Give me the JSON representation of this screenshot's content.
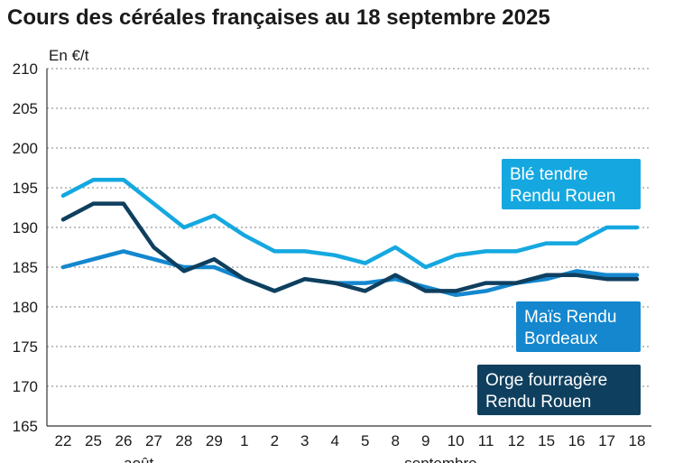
{
  "chart_data": {
    "type": "line",
    "title": "Cours des céréales françaises au 18 septembre 2025",
    "ylabel": "En €/t",
    "ylim": [
      165,
      210
    ],
    "yticks": [
      165,
      170,
      175,
      180,
      185,
      190,
      195,
      200,
      205,
      210
    ],
    "x": [
      "22",
      "25",
      "26",
      "27",
      "28",
      "29",
      "1",
      "2",
      "3",
      "4",
      "5",
      "8",
      "9",
      "10",
      "11",
      "12",
      "15",
      "16",
      "17",
      "18"
    ],
    "month_labels": [
      {
        "label": "août",
        "start": 0,
        "end": 5
      },
      {
        "label": "septembre",
        "start": 6,
        "end": 19
      }
    ],
    "grid": true,
    "series": [
      {
        "name_lines": [
          "Blé tendre",
          "Rendu Rouen"
        ],
        "color": "#15a8e0",
        "values": [
          194,
          196,
          196,
          193,
          190,
          191.5,
          189,
          187,
          187,
          186.5,
          185.5,
          187.5,
          185,
          186.5,
          187,
          187,
          188,
          188,
          190,
          190
        ]
      },
      {
        "name_lines": [
          "Maïs Rendu",
          "Bordeaux"
        ],
        "color": "#1487cf",
        "values": [
          185,
          186,
          187,
          186,
          185,
          185,
          183.5,
          182,
          183.5,
          183,
          183,
          183.5,
          182.5,
          181.5,
          182,
          183,
          183.5,
          184.5,
          184,
          184
        ]
      },
      {
        "name_lines": [
          "Orge fourragère",
          "Rendu Rouen"
        ],
        "color": "#0f3f5e",
        "values": [
          191,
          193,
          193,
          187.5,
          184.5,
          186,
          183.5,
          182,
          183.5,
          183,
          182,
          184,
          182,
          182,
          183,
          183,
          184,
          184,
          183.5,
          183.5
        ]
      }
    ]
  }
}
